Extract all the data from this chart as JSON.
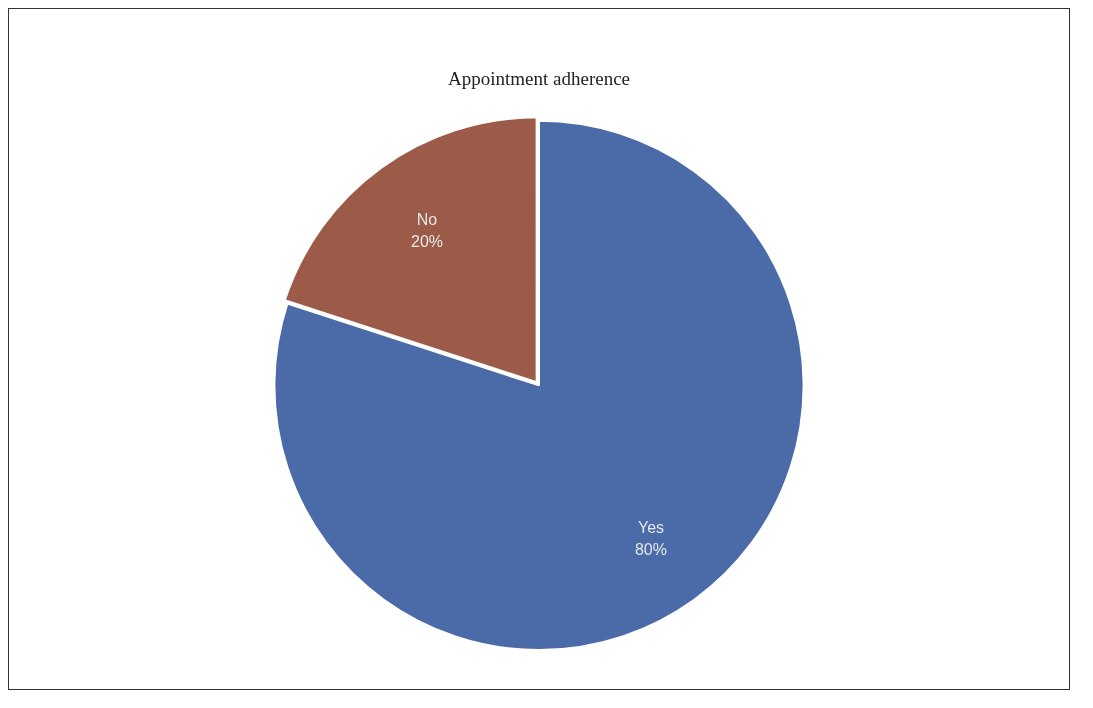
{
  "chart_data": {
    "type": "pie",
    "title": "Appointment adherence",
    "categories": [
      "Yes",
      "No"
    ],
    "values": [
      80,
      20
    ],
    "colors": [
      "#4a6aa8",
      "#9c5a48"
    ],
    "value_labels": [
      "80%",
      "20%"
    ],
    "legend": false
  }
}
